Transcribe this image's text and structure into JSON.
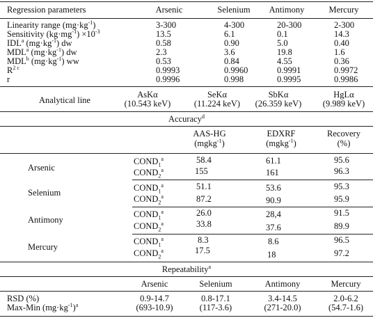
{
  "params": {
    "headers": [
      "Regression parameters",
      "Arsenic",
      "Selenium",
      "Antimony",
      "Mercury"
    ],
    "rows": [
      {
        "label": "Linearity range (mg·kg",
        "sup1": "-1",
        "rest": ")",
        "v": [
          "3-300",
          "4-300",
          "20-300",
          "2-300"
        ]
      },
      {
        "label": "Sensitivity (kg·mg",
        "sup1": "-1",
        "rest": ") ×10",
        "sup2": "-3",
        "v": [
          "13.5",
          "6.1",
          "0.1",
          "14.3"
        ]
      },
      {
        "label": "IDL",
        "sup1": "a",
        "rest": " (mg·kg",
        "sup2": "-1",
        "rest2": ") dw",
        "v": [
          "0.58",
          "0.90",
          "5.0",
          "0.40"
        ]
      },
      {
        "label": "MDL",
        "sup1": "a",
        "rest": " (mg·kg",
        "sup2": "-1",
        "rest2": ") dw",
        "v": [
          "2.3",
          "3.6",
          "19.8",
          "1.6"
        ]
      },
      {
        "label": "MDL",
        "sup1": "b",
        "rest": " (mg·kg",
        "sup2": "-1",
        "rest2": ") ww",
        "v": [
          "0.53",
          "0.84",
          "4.55",
          "0.36"
        ]
      },
      {
        "label": "R",
        "sup1": "2 c",
        "v": [
          "0.9993",
          "0.9960",
          "0.9991",
          "0.9972"
        ]
      },
      {
        "label": "r",
        "v": [
          "0.9996",
          "0.998",
          "0.9995",
          "0.9986"
        ]
      }
    ]
  },
  "analytical": {
    "label": "Analytical line",
    "lines": [
      {
        "name": "AsKα",
        "energy": "(10.543 keV)"
      },
      {
        "name": "SeKα",
        "energy": "(11.224 keV)"
      },
      {
        "name": "SbKα",
        "energy": "(26.359 keV)"
      },
      {
        "name": "HgLα",
        "energy": "(9.989 keV)"
      }
    ]
  },
  "accuracy": {
    "title": "Accuracy",
    "title_sup": "d",
    "col_headers": [
      {
        "line1": "AAS-HG",
        "line2": "(mgkg",
        "sup": "-1",
        "end": ")"
      },
      {
        "line1": "EDXRF",
        "line2": "(mgkg",
        "sup": "-1",
        "end": ")"
      },
      {
        "line1": "Recovery",
        "line2": "(%)"
      }
    ],
    "cond_labels": [
      "COND",
      "COND"
    ],
    "cond_subs": [
      "1",
      "2"
    ],
    "cond_sup": "a",
    "groups": [
      {
        "element": "Arsenic",
        "rows": [
          [
            "58.4",
            "61.1",
            "95.6"
          ],
          [
            "155",
            "161",
            "96.3"
          ]
        ]
      },
      {
        "element": "Selenium",
        "rows": [
          [
            "51.1",
            "53.6",
            "95.3"
          ],
          [
            "87.2",
            "90.9",
            "95.9"
          ]
        ]
      },
      {
        "element": "Antimony",
        "rows": [
          [
            "26.0",
            "28,4",
            "91.5"
          ],
          [
            "33.8",
            "37.6",
            "89.9"
          ]
        ]
      },
      {
        "element": "Mercury",
        "rows": [
          [
            "8.3",
            "8.6",
            "96.5"
          ],
          [
            "17.5",
            "18",
            "97.2"
          ]
        ]
      }
    ]
  },
  "repeatability": {
    "title": "Repeatability",
    "title_sup": "a",
    "headers": [
      "Arsenic",
      "Selenium",
      "Antimony",
      "Mercury"
    ],
    "rsd_label": "RSD (%)",
    "rsd": [
      "0.9-14.7",
      "0.8-17.1",
      "3.4-14.5",
      "2.0-6.2"
    ],
    "maxmin_label": "Max-Min (mg·kg",
    "maxmin_sup": "-1",
    "maxmin_end": ")",
    "maxmin_sup2": "a",
    "maxmin": [
      "(693-10.9)",
      "(117-3.6)",
      "(271-20.0)",
      "(54.7-1.6)"
    ]
  }
}
